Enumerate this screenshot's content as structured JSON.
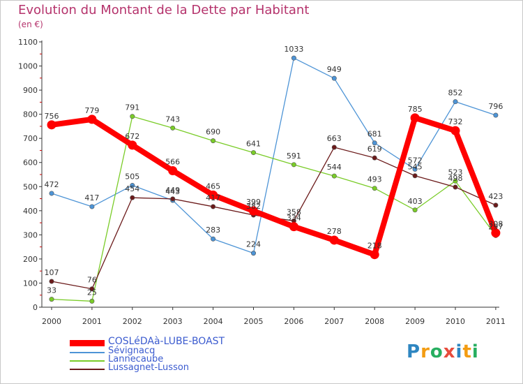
{
  "chart_data": {
    "type": "line",
    "title": "Evolution du Montant de la Dette par Habitant",
    "subtitle": "(en €)",
    "ylim": [
      0,
      1100
    ],
    "yticks": [
      0,
      100,
      200,
      300,
      400,
      500,
      600,
      700,
      800,
      900,
      1000,
      1100
    ],
    "categories": [
      "2000",
      "2001",
      "2002",
      "2003",
      "2004",
      "2005",
      "2006",
      "2007",
      "2008",
      "2009",
      "2010",
      "2011"
    ],
    "series": [
      {
        "name": "COSLéDAà-LUBE-BOAST",
        "color": "#ff0000",
        "highlight": true,
        "values": [
          756,
          779,
          672,
          566,
          465,
          399,
          334,
          278,
          218,
          785,
          732,
          308
        ]
      },
      {
        "name": "Sévignacq",
        "color": "#4d94d6",
        "values": [
          472,
          417,
          505,
          443,
          283,
          224,
          1033,
          949,
          681,
          572,
          852,
          796
        ]
      },
      {
        "name": "Lannecaube",
        "color": "#7acc28",
        "values": [
          33,
          25,
          791,
          743,
          690,
          641,
          591,
          544,
          493,
          403,
          523,
          297
        ]
      },
      {
        "name": "Lussagnet-Lusson",
        "color": "#6b1a1a",
        "values": [
          107,
          76,
          454,
          449,
          417,
          382,
          358,
          663,
          619,
          545,
          498,
          423
        ]
      }
    ],
    "legend_position": "bottom-left",
    "grid": false
  },
  "brand": {
    "letters": [
      "P",
      "r",
      "o",
      "x",
      "i",
      "t",
      "i"
    ],
    "colors": [
      "#2e86c1",
      "#f39c12",
      "#27ae60",
      "#e74c3c",
      "#2e86c1",
      "#f39c12",
      "#27ae60"
    ]
  }
}
